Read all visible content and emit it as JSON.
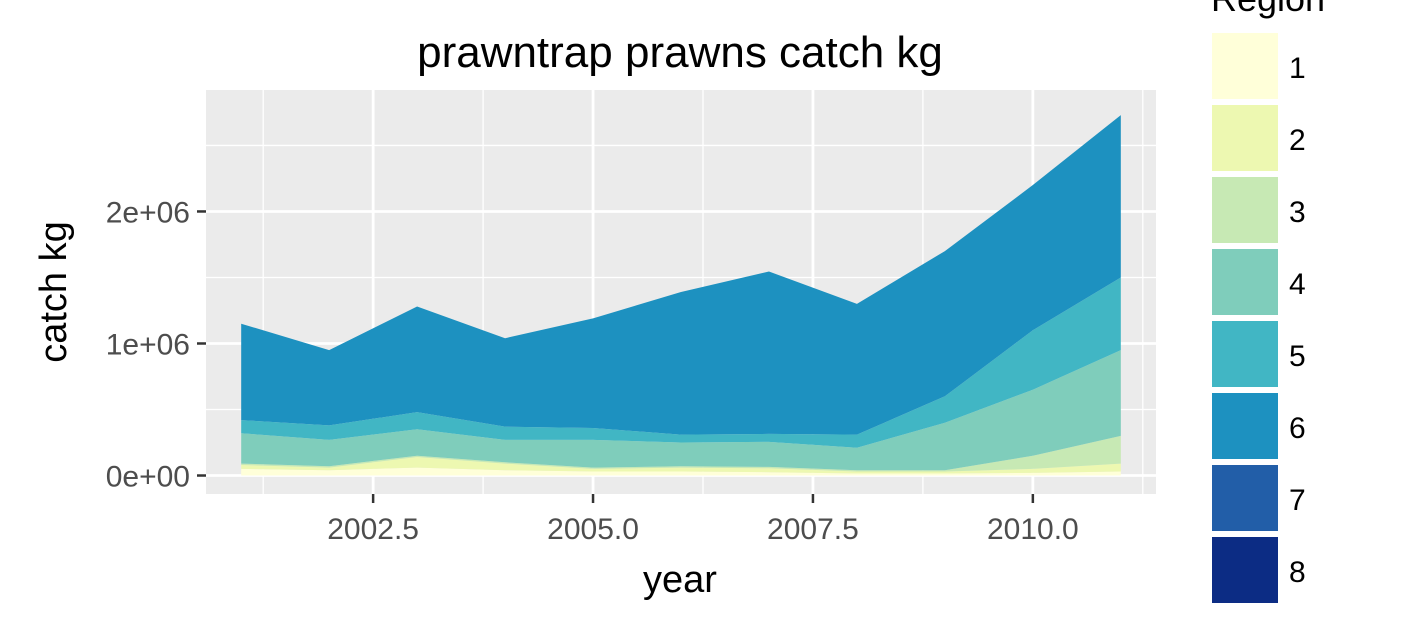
{
  "chart_data": {
    "type": "area",
    "stacked": true,
    "title": "prawntrap prawns catch kg",
    "xlabel": "year",
    "ylabel": "catch kg",
    "xlim": [
      2000.6,
      2011.4
    ],
    "ylim": [
      -140000,
      2920000
    ],
    "x": [
      2001,
      2002,
      2003,
      2004,
      2005,
      2006,
      2007,
      2008,
      2009,
      2010,
      2011
    ],
    "x_ticks": [
      2002.5,
      2005.0,
      2007.5,
      2010.0
    ],
    "x_tick_labels": [
      "2002.5",
      "2005.0",
      "2007.5",
      "2010.0"
    ],
    "y_ticks": [
      0,
      1000000,
      2000000
    ],
    "y_tick_labels": [
      "0e+00",
      "1e+06",
      "2e+06"
    ],
    "grid": true,
    "legend": {
      "title": "Region",
      "position": "right"
    },
    "series": [
      {
        "name": "1",
        "color": "#ffffd9",
        "values": [
          50000,
          40000,
          60000,
          40000,
          30000,
          30000,
          25000,
          15000,
          15000,
          20000,
          30000
        ]
      },
      {
        "name": "2",
        "color": "#edf8b1",
        "values": [
          30000,
          20000,
          80000,
          50000,
          20000,
          30000,
          30000,
          15000,
          15000,
          30000,
          60000
        ]
      },
      {
        "name": "3",
        "color": "#c7e9b4",
        "values": [
          10000,
          10000,
          10000,
          10000,
          10000,
          10000,
          10000,
          10000,
          10000,
          100000,
          210000
        ]
      },
      {
        "name": "4",
        "color": "#7fcdbb",
        "values": [
          230000,
          200000,
          200000,
          170000,
          210000,
          180000,
          190000,
          170000,
          360000,
          500000,
          650000
        ]
      },
      {
        "name": "5",
        "color": "#41b6c4",
        "values": [
          100000,
          110000,
          130000,
          100000,
          90000,
          60000,
          60000,
          100000,
          200000,
          450000,
          550000
        ]
      },
      {
        "name": "6",
        "color": "#1d91c0",
        "values": [
          730000,
          570000,
          800000,
          670000,
          830000,
          1080000,
          1230000,
          990000,
          1100000,
          1100000,
          1230000
        ]
      },
      {
        "name": "7",
        "color": "#225ea8",
        "values": [
          0,
          0,
          0,
          0,
          0,
          0,
          0,
          0,
          0,
          0,
          0
        ]
      },
      {
        "name": "8",
        "color": "#0c2c84",
        "values": [
          0,
          0,
          0,
          0,
          0,
          0,
          0,
          0,
          0,
          0,
          0
        ]
      }
    ]
  }
}
